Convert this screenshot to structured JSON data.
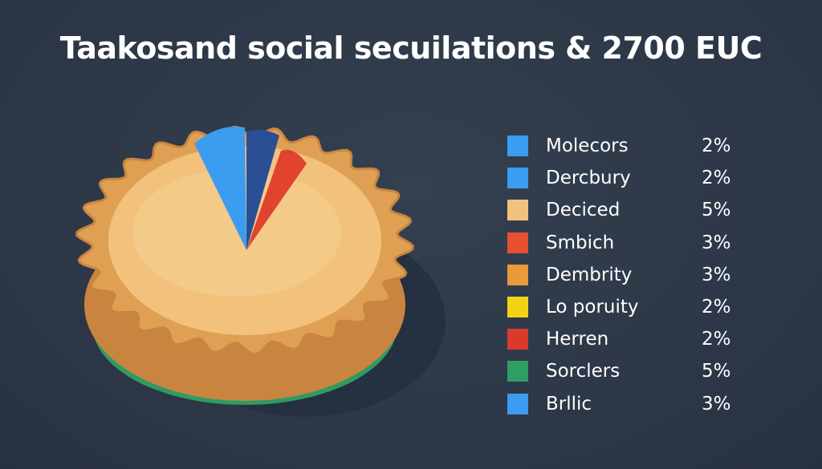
{
  "chart_data": {
    "type": "pie",
    "title": "Taakosand social secuilations & 2700 EUC",
    "legend_position": "right",
    "categories": [
      "Molecors",
      "Dercbury",
      "Deciced",
      "Smbich",
      "Dembrity",
      "Lo poruity",
      "Herren",
      "Sorclers",
      "Brllic"
    ],
    "values": [
      2,
      2,
      5,
      3,
      3,
      2,
      2,
      5,
      3
    ],
    "value_labels": [
      "2%",
      "2%",
      "5%",
      "3%",
      "3%",
      "2%",
      "2%",
      "5%",
      "3%"
    ],
    "colors": [
      "#3b9cf0",
      "#3b9cf0",
      "#f1c27d",
      "#e8502f",
      "#e89a3c",
      "#f2d313",
      "#d93a2b",
      "#2e9e63",
      "#3b9cf0"
    ]
  },
  "pie_colors": {
    "crust": "#e0a054",
    "crust_dark": "#c98540",
    "filling": "#f2c27d",
    "plate": "#2f9b62",
    "wedge_blue": "#3b9cf0",
    "wedge_navy": "#2b4f95",
    "wedge_red": "#e0442f"
  }
}
